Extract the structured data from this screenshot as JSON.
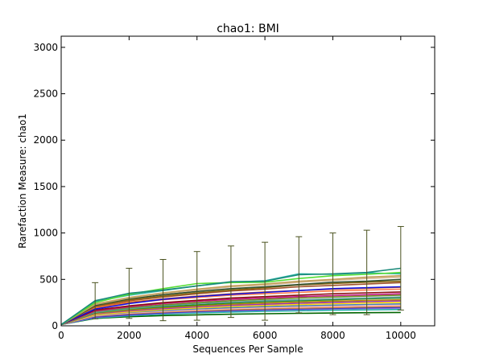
{
  "chart_data": {
    "type": "line",
    "title": "chao1: BMI",
    "xlabel": "Sequences Per Sample",
    "ylabel": "Rarefaction Measure: chao1",
    "xlim": [
      0,
      11000
    ],
    "ylim": [
      0,
      3120
    ],
    "x_ticks": [
      0,
      2000,
      4000,
      6000,
      8000,
      10000
    ],
    "y_ticks": [
      0,
      500,
      1000,
      1500,
      2000,
      2500,
      3000
    ],
    "x": [
      10,
      1000,
      2000,
      3000,
      4000,
      5000,
      6000,
      7000,
      8000,
      9000,
      10000
    ],
    "grid": false,
    "legend": "none",
    "series": [
      {
        "color": "#1b8a7a",
        "values": [
          15,
          270,
          350,
          385,
          430,
          475,
          480,
          550,
          560,
          575,
          620
        ],
        "error": [
          0,
          195,
          270,
          330,
          370,
          385,
          420,
          410,
          440,
          455,
          450
        ]
      },
      {
        "color": "#55dd33",
        "values": [
          15,
          250,
          340,
          400,
          455,
          465,
          470,
          510,
          540,
          555,
          575
        ]
      },
      {
        "color": "#2bb3a6",
        "values": [
          15,
          260,
          330,
          380,
          430,
          470,
          485,
          560,
          555,
          570,
          560
        ]
      },
      {
        "color": "#c2a05a",
        "values": [
          15,
          235,
          305,
          355,
          395,
          430,
          450,
          480,
          500,
          525,
          540
        ]
      },
      {
        "color": "#d2b48c",
        "values": [
          15,
          230,
          300,
          350,
          385,
          420,
          440,
          470,
          490,
          510,
          525
        ]
      },
      {
        "color": "#2f4f2f",
        "values": [
          15,
          220,
          290,
          335,
          370,
          400,
          420,
          445,
          470,
          480,
          500
        ]
      },
      {
        "color": "#8b6914",
        "values": [
          15,
          215,
          280,
          320,
          355,
          385,
          410,
          440,
          455,
          470,
          480
        ]
      },
      {
        "color": "#a0522d",
        "values": [
          15,
          210,
          270,
          310,
          345,
          375,
          395,
          420,
          435,
          450,
          465
        ]
      },
      {
        "color": "#1010e0",
        "values": [
          15,
          180,
          240,
          285,
          315,
          340,
          360,
          380,
          400,
          410,
          420
        ]
      },
      {
        "color": "#e07020",
        "values": [
          15,
          200,
          255,
          290,
          320,
          345,
          365,
          380,
          395,
          405,
          415
        ]
      },
      {
        "color": "#ff7f50",
        "values": [
          15,
          190,
          245,
          280,
          305,
          330,
          345,
          360,
          375,
          385,
          395
        ]
      },
      {
        "color": "#8b1010",
        "values": [
          15,
          170,
          215,
          250,
          275,
          300,
          315,
          330,
          345,
          355,
          365
        ]
      },
      {
        "color": "#c71585",
        "values": [
          15,
          160,
          205,
          240,
          265,
          285,
          300,
          315,
          325,
          335,
          345
        ]
      },
      {
        "color": "#6b8e23",
        "values": [
          15,
          155,
          195,
          225,
          250,
          270,
          285,
          300,
          310,
          320,
          330
        ]
      },
      {
        "color": "#5f9ea0",
        "values": [
          15,
          145,
          185,
          215,
          240,
          255,
          270,
          280,
          290,
          300,
          310
        ]
      },
      {
        "color": "#228b22",
        "values": [
          15,
          140,
          180,
          205,
          225,
          245,
          260,
          270,
          280,
          290,
          300
        ]
      },
      {
        "color": "#b8860b",
        "values": [
          15,
          135,
          170,
          195,
          215,
          232,
          245,
          255,
          265,
          272,
          280
        ]
      },
      {
        "color": "#9932cc",
        "values": [
          15,
          130,
          160,
          185,
          205,
          220,
          232,
          243,
          252,
          260,
          268
        ]
      },
      {
        "color": "#ffd700",
        "values": [
          15,
          120,
          150,
          175,
          193,
          208,
          220,
          230,
          238,
          246,
          252
        ]
      },
      {
        "color": "#4682b4",
        "values": [
          15,
          115,
          145,
          165,
          182,
          196,
          206,
          215,
          223,
          230,
          236
        ]
      },
      {
        "color": "#ffb6c1",
        "values": [
          15,
          110,
          138,
          157,
          172,
          185,
          195,
          203,
          210,
          216,
          222
        ]
      },
      {
        "color": "#cd853f",
        "values": [
          15,
          105,
          130,
          148,
          162,
          173,
          182,
          190,
          197,
          203,
          208
        ]
      },
      {
        "color": "#3333cc",
        "values": [
          15,
          95,
          120,
          140,
          155,
          165,
          175,
          182,
          188,
          194,
          200
        ]
      },
      {
        "color": "#9370db",
        "values": [
          15,
          90,
          115,
          135,
          150,
          160,
          168,
          175,
          181,
          186,
          190
        ]
      },
      {
        "color": "#20b2aa",
        "values": [
          15,
          85,
          108,
          125,
          138,
          148,
          156,
          162,
          168,
          172,
          176
        ]
      },
      {
        "color": "#006400",
        "values": [
          15,
          80,
          98,
          110,
          118,
          125,
          130,
          134,
          138,
          141,
          144
        ]
      }
    ]
  }
}
